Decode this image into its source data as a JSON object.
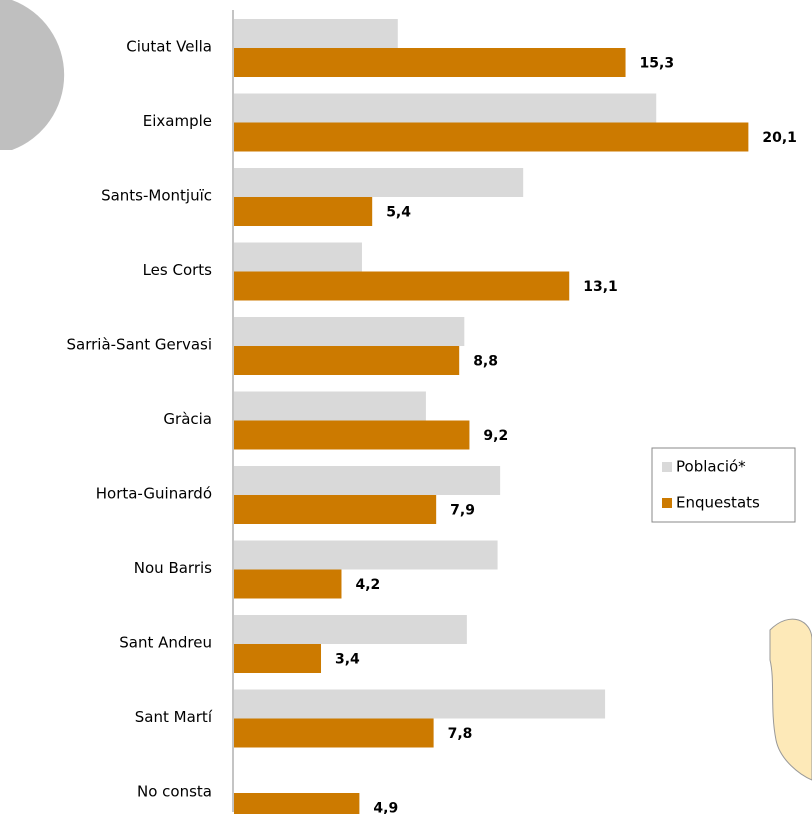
{
  "chart_data": {
    "type": "bar",
    "orientation": "horizontal",
    "categories": [
      "Ciutat Vella",
      "Eixample",
      "Sants-Montjuïc",
      "Les Corts",
      "Sarrià-Sant Gervasi",
      "Gràcia",
      "Horta-Guinardó",
      "Nou Barris",
      "Sant Andreu",
      "Sant Martí",
      "No consta"
    ],
    "series": [
      {
        "name": "Població*",
        "color": "#d9d9d9",
        "values": [
          6.4,
          16.5,
          11.3,
          5.0,
          9.0,
          7.5,
          10.4,
          10.3,
          9.1,
          14.5,
          null
        ]
      },
      {
        "name": "Enquestats",
        "color": "#cc7a00",
        "values": [
          15.3,
          20.1,
          5.4,
          13.1,
          8.8,
          9.2,
          7.9,
          4.2,
          3.4,
          7.8,
          4.9
        ],
        "value_labels": [
          "15,3",
          "20,1",
          "5,4",
          "13,1",
          "8,8",
          "9,2",
          "7,9",
          "4,2",
          "3,4",
          "7,8",
          "4,9"
        ]
      }
    ],
    "xlim": [
      0,
      22
    ],
    "legend": "right"
  }
}
